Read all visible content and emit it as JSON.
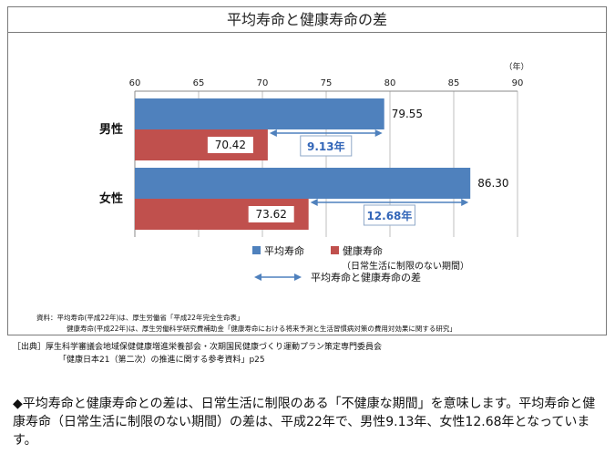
{
  "frame_title": "平均寿命と健康寿命の差",
  "chart_data": {
    "type": "bar",
    "orientation": "horizontal",
    "title": "平均寿命と健康寿命の差",
    "unit_label": "（年）",
    "xlim": [
      60,
      90
    ],
    "xticks": [
      "60",
      "65",
      "70",
      "75",
      "80",
      "85",
      "90"
    ],
    "categories": [
      "男性",
      "女性"
    ],
    "series": [
      {
        "name": "平均寿命",
        "color": "#4f81bd",
        "values": [
          79.55,
          86.3
        ],
        "labels": [
          "79.55",
          "86.30"
        ]
      },
      {
        "name": "健康寿命",
        "color": "#c0504d",
        "values": [
          70.42,
          73.62
        ],
        "labels": [
          "70.42",
          "73.62"
        ]
      }
    ],
    "gaps": [
      {
        "category": "男性",
        "value": 9.13,
        "label": "9.13年"
      },
      {
        "category": "女性",
        "value": 12.68,
        "label": "12.68年"
      }
    ],
    "legend": {
      "items": [
        {
          "label": "平均寿命",
          "color": "#4f81bd"
        },
        {
          "label": "健康寿命",
          "color": "#c0504d"
        }
      ],
      "note": "（日常生活に制限のない期間）",
      "arrow_label": "平均寿命と健康寿命の差",
      "arrow_color": "#4f81bd"
    },
    "gap_arrow_color": "#4f81bd",
    "gap_text_color": "#3366b8",
    "grid": true
  },
  "source_note": {
    "line1": "資料：平均寿命(平成22年)は、厚生労働省「平成22年完全生命表」",
    "line2": "健康寿命(平成22年)は、厚生労働科学研究費補助金「健康寿命における将来予測と生活習慣病対策の費用対効果に関する研究」"
  },
  "citation": {
    "line1": "［出典］厚生科学審議会地域保健健康増進栄養部会・次期国民健康づくり運動プラン策定専門委員会",
    "line2": "「健康日本21（第二次）の推進に関する参考資料」p25"
  },
  "summary": "◆平均寿命と健康寿命との差は、日常生活に制限のある「不健康な期間」を意味します。平均寿命と健康寿命（日常生活に制限のない期間）の差は、平成22年で、男性9.13年、女性12.68年となっています。"
}
